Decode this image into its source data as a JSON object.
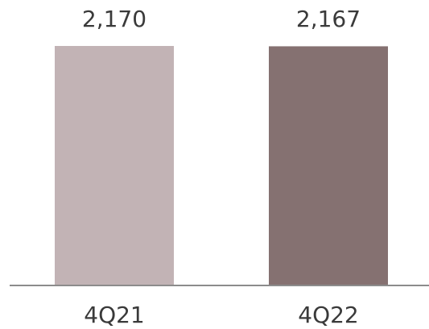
{
  "chart_data": {
    "type": "bar",
    "categories": [
      "4Q21",
      "4Q22"
    ],
    "values": [
      2170,
      2167
    ],
    "value_labels": [
      "2,170",
      "2,167"
    ],
    "colors": [
      "#c2b3b5",
      "#857171"
    ],
    "axis_color": "#8c8c8c",
    "ylim": [
      0,
      2170
    ],
    "grid": false,
    "title": "",
    "xlabel": "",
    "ylabel": ""
  }
}
